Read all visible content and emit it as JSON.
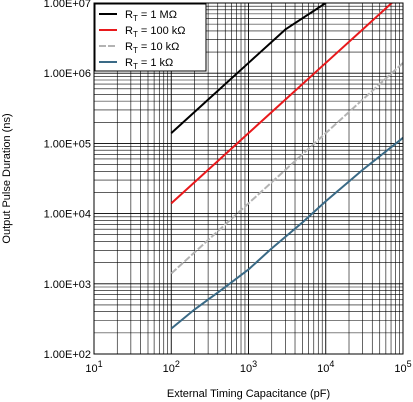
{
  "chart_data": {
    "type": "line",
    "xlabel": "External Timing Capacitance (pF)",
    "ylabel": "Output Pulse Duration (ns)",
    "xscale": "log",
    "yscale": "log",
    "xlim": [
      10,
      100000
    ],
    "ylim": [
      100,
      10000000
    ],
    "grid": true,
    "legend_position": "top-left",
    "x_tick_labels": [
      {
        "base": "10",
        "exp": "1"
      },
      {
        "base": "10",
        "exp": "2"
      },
      {
        "base": "10",
        "exp": "3"
      },
      {
        "base": "10",
        "exp": "4"
      },
      {
        "base": "10",
        "exp": "5"
      }
    ],
    "y_tick_labels": [
      "1.00E+02",
      "1.00E+03",
      "1.00E+04",
      "1.00E+05",
      "1.00E+06",
      "1.00E+07"
    ],
    "series": [
      {
        "name": "Rₜ = 1 MΩ",
        "name_main": "R",
        "name_sub": "T",
        "name_rest": " = 1 MΩ",
        "color": "#000000",
        "dash": false,
        "x": [
          100,
          300,
          1000,
          3000,
          10000
        ],
        "y": [
          140000,
          420000,
          1400000,
          4200000,
          10000000
        ]
      },
      {
        "name": "Rₜ = 100 kΩ",
        "name_main": "R",
        "name_sub": "T",
        "name_rest": " = 100 kΩ",
        "color": "#e8191c",
        "dash": false,
        "x": [
          100,
          300,
          1000,
          3000,
          10000,
          30000,
          100000
        ],
        "y": [
          14000,
          42000,
          140000,
          420000,
          1400000,
          4200000,
          14000000
        ]
      },
      {
        "name": "Rₜ = 10 kΩ",
        "name_main": "R",
        "name_sub": "T",
        "name_rest": " = 10 kΩ",
        "color": "#b3b3b3",
        "dash": true,
        "x": [
          100,
          300,
          1000,
          3000,
          10000,
          30000,
          100000
        ],
        "y": [
          1400,
          4200,
          14000,
          42000,
          140000,
          420000,
          1400000
        ]
      },
      {
        "name": "Rₜ = 1 kΩ",
        "name_main": "R",
        "name_sub": "T",
        "name_rest": " = 1 kΩ",
        "color": "#3a6a86",
        "dash": false,
        "x": [
          100,
          200,
          500,
          1000,
          2000,
          5000,
          10000,
          30000,
          100000
        ],
        "y": [
          230,
          430,
          900,
          1600,
          3200,
          7500,
          15000,
          42000,
          120000
        ]
      }
    ]
  }
}
